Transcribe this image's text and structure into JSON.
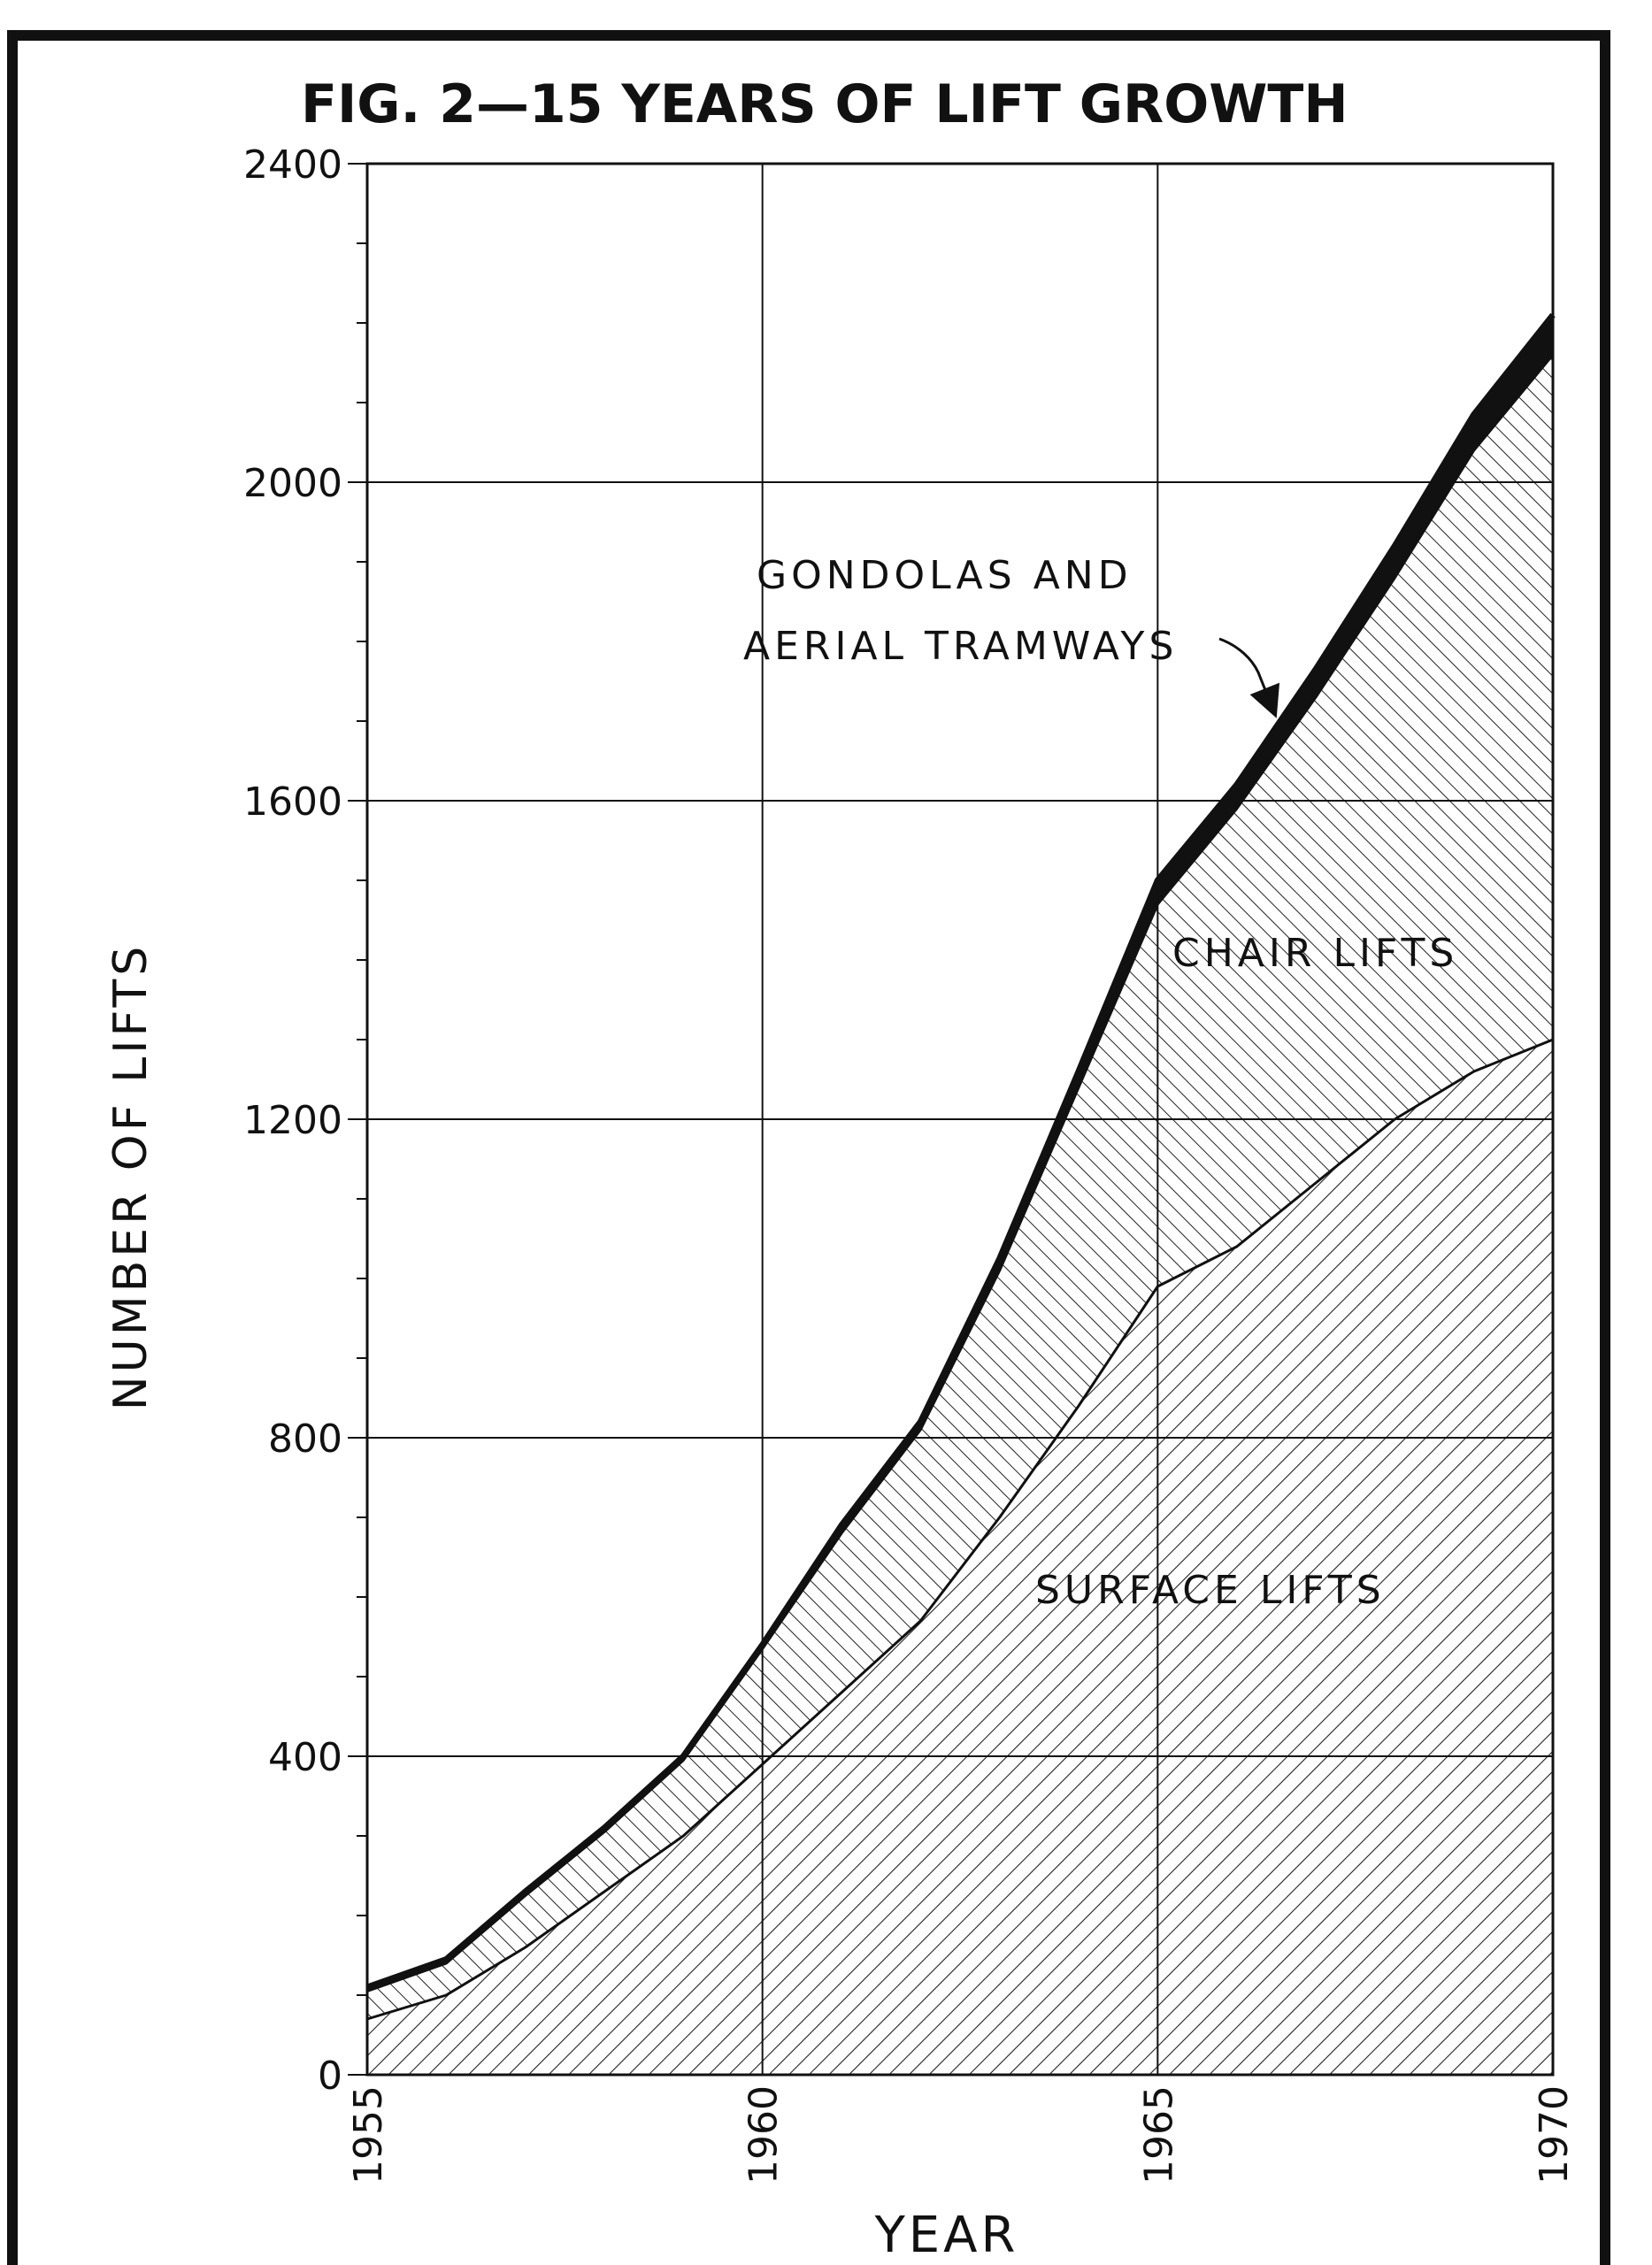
{
  "chart_data": {
    "type": "area",
    "stacked": true,
    "title": "FIG. 2—15 YEARS OF LIFT GROWTH",
    "xlabel": "YEAR",
    "ylabel": "NUMBER OF LIFTS",
    "xlim": [
      1955,
      1970
    ],
    "ylim": [
      0,
      2400
    ],
    "x_ticks": [
      "1955",
      "1960",
      "1965",
      "1970"
    ],
    "y_ticks": [
      "0",
      "400",
      "800",
      "1200",
      "1600",
      "2000",
      "2400"
    ],
    "grid": true,
    "x": [
      1955,
      1956,
      1957,
      1958,
      1959,
      1960,
      1961,
      1962,
      1963,
      1964,
      1965,
      1966,
      1967,
      1968,
      1969,
      1970
    ],
    "series": [
      {
        "name": "SURFACE LIFTS",
        "values": [
          70,
          100,
          160,
          230,
          300,
          390,
          480,
          570,
          700,
          840,
          990,
          1040,
          1120,
          1200,
          1260,
          1300
        ]
      },
      {
        "name": "CHAIR LIFTS",
        "values": [
          35,
          40,
          65,
          75,
          95,
          145,
          200,
          240,
          310,
          400,
          480,
          550,
          610,
          680,
          780,
          860
        ]
      },
      {
        "name": "GONDOLAS AND AERIAL TRAMWAYS",
        "values": [
          5,
          5,
          5,
          5,
          5,
          5,
          10,
          10,
          15,
          20,
          30,
          30,
          35,
          40,
          45,
          50
        ]
      }
    ],
    "annotations": {
      "gondola_line1": "GONDOLAS AND",
      "gondola_line2": "AERIAL TRAMWAYS",
      "chair": "CHAIR LIFTS",
      "surface": "SURFACE LIFTS"
    }
  }
}
